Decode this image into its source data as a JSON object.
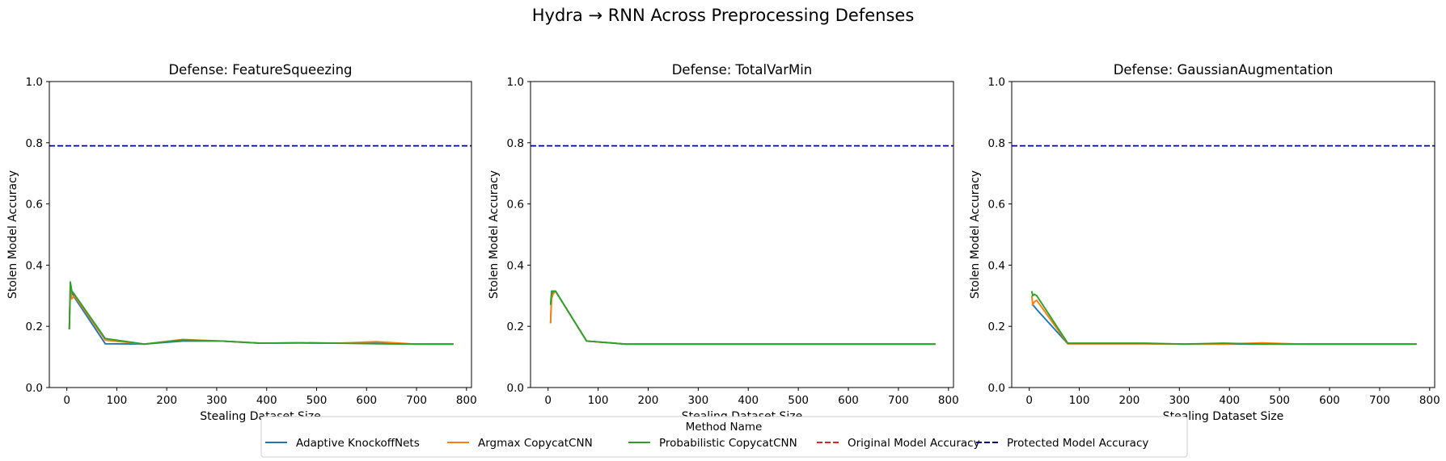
{
  "figure_title": "Hydra → RNN Across Preprocessing Defenses",
  "legend": {
    "title": "Method Name",
    "entries": [
      {
        "label": "Adaptive KnockoffNets",
        "color": "#1f77b4",
        "dash": "solid"
      },
      {
        "label": "Argmax CopycatCNN",
        "color": "#ff7f0e",
        "dash": "solid"
      },
      {
        "label": "Probabilistic CopycatCNN",
        "color": "#2ca02c",
        "dash": "solid"
      },
      {
        "label": "Original Model Accuracy",
        "color": "#d62728",
        "dash": "dashed"
      },
      {
        "label": "Protected Model Accuracy",
        "color": "#00008b",
        "dash": "dashed"
      }
    ]
  },
  "chart_data": [
    {
      "type": "line",
      "title": "Defense: FeatureSqueezing",
      "xlabel": "Stealing Dataset Size",
      "ylabel": "Stolen Model Accuracy",
      "xlim": [
        -35,
        810
      ],
      "ylim": [
        0,
        1.0
      ],
      "xticks": [
        0,
        100,
        200,
        300,
        400,
        500,
        600,
        700,
        800
      ],
      "yticks": [
        0.0,
        0.2,
        0.4,
        0.6,
        0.8,
        1.0
      ],
      "hlines": [
        {
          "name": "Protected Model Accuracy",
          "y": 0.79,
          "color": "#00008b"
        }
      ],
      "series": [
        {
          "name": "Adaptive KnockoffNets",
          "color": "#1f77b4",
          "x": [
            5,
            7,
            10,
            15,
            77,
            155,
            232,
            310,
            387,
            465,
            542,
            620,
            697,
            774
          ],
          "y": [
            0.19,
            0.31,
            0.31,
            0.295,
            0.143,
            0.142,
            0.152,
            0.152,
            0.145,
            0.146,
            0.145,
            0.145,
            0.142,
            0.142
          ]
        },
        {
          "name": "Argmax CopycatCNN",
          "color": "#ff7f0e",
          "x": [
            5,
            7,
            10,
            15,
            77,
            155,
            232,
            310,
            387,
            465,
            542,
            620,
            697,
            774
          ],
          "y": [
            0.19,
            0.32,
            0.29,
            0.3,
            0.155,
            0.142,
            0.157,
            0.152,
            0.145,
            0.146,
            0.145,
            0.15,
            0.142,
            0.142
          ]
        },
        {
          "name": "Probabilistic CopycatCNN",
          "color": "#2ca02c",
          "x": [
            5,
            7,
            10,
            15,
            77,
            155,
            232,
            310,
            387,
            465,
            542,
            620,
            697,
            774
          ],
          "y": [
            0.19,
            0.345,
            0.315,
            0.305,
            0.16,
            0.142,
            0.155,
            0.152,
            0.145,
            0.146,
            0.145,
            0.143,
            0.142,
            0.142
          ]
        }
      ]
    },
    {
      "type": "line",
      "title": "Defense: TotalVarMin",
      "xlabel": "Stealing Dataset Size",
      "ylabel": "Stolen Model Accuracy",
      "xlim": [
        -35,
        810
      ],
      "ylim": [
        0,
        1.0
      ],
      "xticks": [
        0,
        100,
        200,
        300,
        400,
        500,
        600,
        700,
        800
      ],
      "yticks": [
        0.0,
        0.2,
        0.4,
        0.6,
        0.8,
        1.0
      ],
      "hlines": [
        {
          "name": "Protected Model Accuracy",
          "y": 0.79,
          "color": "#00008b"
        }
      ],
      "series": [
        {
          "name": "Adaptive KnockoffNets",
          "color": "#1f77b4",
          "x": [
            5,
            7,
            10,
            15,
            77,
            155,
            232,
            310,
            387,
            465,
            542,
            620,
            697,
            774
          ],
          "y": [
            0.21,
            0.3,
            0.31,
            0.315,
            0.152,
            0.142,
            0.142,
            0.142,
            0.142,
            0.142,
            0.142,
            0.142,
            0.142,
            0.142
          ]
        },
        {
          "name": "Argmax CopycatCNN",
          "color": "#ff7f0e",
          "x": [
            5,
            7,
            10,
            15,
            77,
            155,
            232,
            310,
            387,
            465,
            542,
            620,
            697,
            774
          ],
          "y": [
            0.21,
            0.29,
            0.305,
            0.315,
            0.152,
            0.142,
            0.142,
            0.142,
            0.142,
            0.142,
            0.142,
            0.142,
            0.142,
            0.142
          ]
        },
        {
          "name": "Probabilistic CopycatCNN",
          "color": "#2ca02c",
          "x": [
            5,
            7,
            10,
            15,
            77,
            155,
            232,
            310,
            387,
            465,
            542,
            620,
            697,
            774
          ],
          "y": [
            0.27,
            0.315,
            0.315,
            0.315,
            0.152,
            0.142,
            0.142,
            0.142,
            0.142,
            0.142,
            0.142,
            0.142,
            0.142,
            0.142
          ]
        }
      ]
    },
    {
      "type": "line",
      "title": "Defense: GaussianAugmentation",
      "xlabel": "Stealing Dataset Size",
      "ylabel": "Stolen Model Accuracy",
      "xlim": [
        -35,
        810
      ],
      "ylim": [
        0,
        1.0
      ],
      "xticks": [
        0,
        100,
        200,
        300,
        400,
        500,
        600,
        700,
        800
      ],
      "yticks": [
        0.0,
        0.2,
        0.4,
        0.6,
        0.8,
        1.0
      ],
      "hlines": [
        {
          "name": "Protected Model Accuracy",
          "y": 0.79,
          "color": "#00008b"
        }
      ],
      "series": [
        {
          "name": "Adaptive KnockoffNets",
          "color": "#1f77b4",
          "x": [
            5,
            7,
            10,
            15,
            77,
            155,
            232,
            310,
            387,
            465,
            542,
            620,
            697,
            774
          ],
          "y": [
            0.27,
            0.27,
            0.265,
            0.255,
            0.143,
            0.143,
            0.143,
            0.142,
            0.142,
            0.142,
            0.142,
            0.142,
            0.142,
            0.142
          ]
        },
        {
          "name": "Argmax CopycatCNN",
          "color": "#ff7f0e",
          "x": [
            5,
            7,
            10,
            15,
            77,
            155,
            232,
            310,
            387,
            465,
            542,
            620,
            697,
            774
          ],
          "y": [
            0.3,
            0.27,
            0.28,
            0.285,
            0.143,
            0.143,
            0.143,
            0.142,
            0.142,
            0.146,
            0.142,
            0.142,
            0.142,
            0.142
          ]
        },
        {
          "name": "Probabilistic CopycatCNN",
          "color": "#2ca02c",
          "x": [
            5,
            7,
            10,
            15,
            77,
            155,
            232,
            310,
            387,
            465,
            542,
            620,
            697,
            774
          ],
          "y": [
            0.315,
            0.3,
            0.305,
            0.3,
            0.145,
            0.145,
            0.145,
            0.142,
            0.145,
            0.142,
            0.142,
            0.142,
            0.142,
            0.142
          ]
        }
      ]
    }
  ]
}
